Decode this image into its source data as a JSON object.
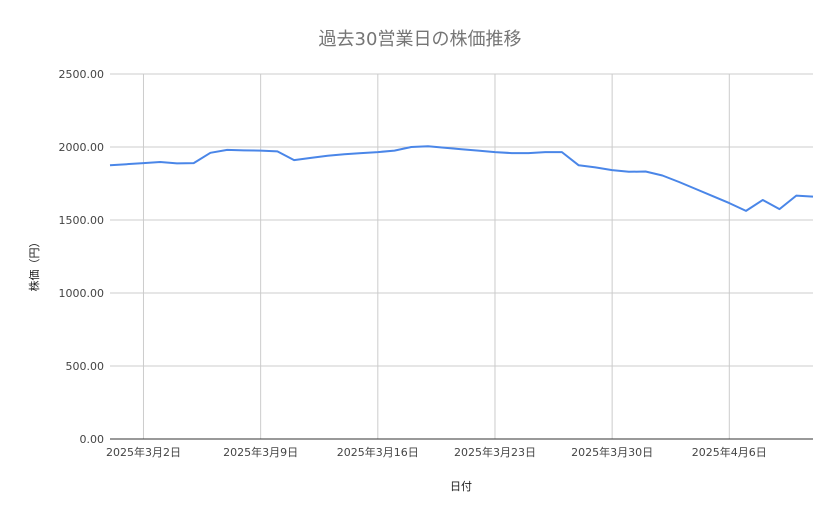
{
  "chart_data": {
    "type": "line",
    "title": "過去30営業日の株価推移",
    "xlabel": "日付",
    "ylabel": "株価（円）",
    "ylim": [
      0,
      2500
    ],
    "yticks": [
      "0.00",
      "500.00",
      "1000.00",
      "1500.00",
      "2000.00",
      "2500.00"
    ],
    "xlim": [
      "2025-02-28",
      "2025-04-11"
    ],
    "xticks": [
      {
        "date": "2025-03-02",
        "label": "2025年3月2日"
      },
      {
        "date": "2025-03-09",
        "label": "2025年3月9日"
      },
      {
        "date": "2025-03-16",
        "label": "2025年3月16日"
      },
      {
        "date": "2025-03-23",
        "label": "2025年3月23日"
      },
      {
        "date": "2025-03-30",
        "label": "2025年3月30日"
      },
      {
        "date": "2025-04-06",
        "label": "2025年4月6日"
      }
    ],
    "grid": true,
    "line_color": "#4a86e8",
    "series": [
      {
        "x": [
          "2025-02-28",
          "2025-03-01",
          "2025-03-02",
          "2025-03-03",
          "2025-03-04",
          "2025-03-05",
          "2025-03-06",
          "2025-03-07",
          "2025-03-08",
          "2025-03-09",
          "2025-03-10",
          "2025-03-11",
          "2025-03-12",
          "2025-03-13",
          "2025-03-14",
          "2025-03-15",
          "2025-03-16",
          "2025-03-17",
          "2025-03-18",
          "2025-03-19",
          "2025-03-20",
          "2025-03-21",
          "2025-03-22",
          "2025-03-23",
          "2025-03-24",
          "2025-03-25",
          "2025-03-26",
          "2025-03-27",
          "2025-03-28",
          "2025-03-29",
          "2025-03-30",
          "2025-03-31",
          "2025-04-01",
          "2025-04-02",
          "2025-04-03",
          "2025-04-04",
          "2025-04-05",
          "2025-04-06",
          "2025-04-07",
          "2025-04-08",
          "2025-04-09",
          "2025-04-10",
          "2025-04-11"
        ],
        "values": [
          1875,
          1882,
          1890,
          1897,
          1888,
          1890,
          1960,
          1980,
          1977,
          1975,
          1970,
          1910,
          1925,
          1940,
          1950,
          1958,
          1965,
          1975,
          2000,
          2005,
          1995,
          1985,
          1975,
          1965,
          1958,
          1958,
          1965,
          1965,
          1875,
          1860,
          1842,
          1830,
          1832,
          1805,
          1760,
          1712,
          1664,
          1616,
          1562,
          1637,
          1575,
          1667,
          1660
        ]
      }
    ]
  }
}
